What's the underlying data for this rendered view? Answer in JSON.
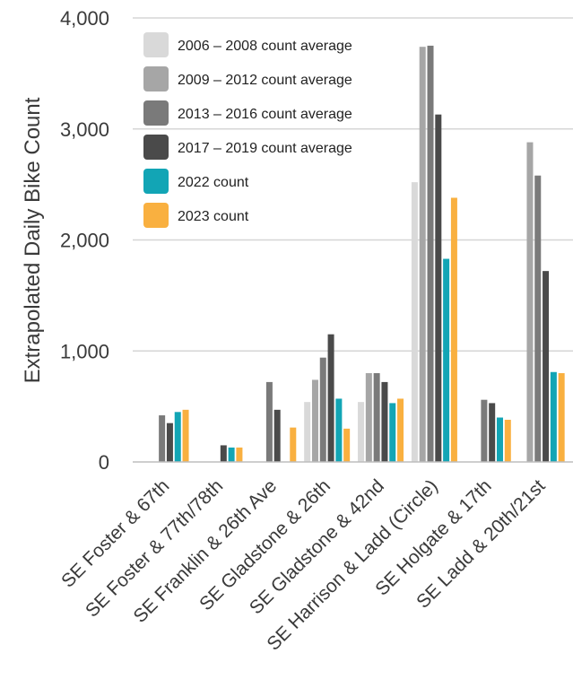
{
  "chart_data": {
    "type": "bar",
    "ylabel": "Extrapolated Daily Bike Count",
    "xlabel": "",
    "ylim": [
      0,
      4000
    ],
    "yticks": [
      0,
      1000,
      2000,
      3000,
      4000
    ],
    "ytick_labels": [
      "0",
      "1,000",
      "2,000",
      "3,000",
      "4,000"
    ],
    "grid": true,
    "legend_position": "top-left",
    "categories": [
      "SE Foster & 67th",
      "SE Foster & 77th/78th",
      "SE Franklin & 26th Ave",
      "SE Gladstone & 26th",
      "SE Gladstone & 42nd",
      "SE Harrison & Ladd  (Circle)",
      "SE Holgate & 17th",
      "SE Ladd & 20th/21st"
    ],
    "series": [
      {
        "name": "2006 – 2008 count average",
        "color": "#d9d9d9",
        "values": [
          null,
          null,
          null,
          540,
          540,
          2520,
          null,
          null
        ]
      },
      {
        "name": "2009 – 2012 count average",
        "color": "#a6a6a6",
        "values": [
          null,
          null,
          null,
          740,
          800,
          3740,
          null,
          2880
        ]
      },
      {
        "name": "2013 – 2016 count average",
        "color": "#7a7a7a",
        "values": [
          420,
          null,
          720,
          940,
          800,
          3750,
          560,
          2580
        ]
      },
      {
        "name": "2017 – 2019 count average",
        "color": "#4a4a4a",
        "values": [
          350,
          150,
          470,
          1150,
          720,
          3130,
          530,
          1720
        ]
      },
      {
        "name": "2022 count",
        "color": "#12a5b5",
        "values": [
          450,
          130,
          null,
          570,
          530,
          1830,
          400,
          810
        ]
      },
      {
        "name": "2023 count",
        "color": "#f9b040",
        "values": [
          470,
          130,
          310,
          300,
          570,
          2380,
          380,
          800
        ]
      }
    ]
  }
}
